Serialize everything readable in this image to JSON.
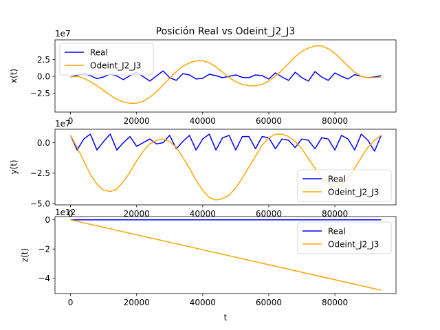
{
  "title": "Posición Real vs Odeint_J2_J3",
  "colors": {
    "real": "#0000ff",
    "odeint": "#ffa500",
    "axes": "#000000",
    "background": "#ffffff"
  },
  "chart_data": [
    {
      "type": "line",
      "ylabel": "x(t)",
      "xlabel": "",
      "offset_text": "1e7",
      "xlim": [
        -4700,
        98500
      ],
      "ylim": [
        -53000000,
        54000000
      ],
      "xticks": [
        0,
        20000,
        40000,
        60000,
        80000
      ],
      "xtick_labels": [
        "0",
        "20000",
        "40000",
        "60000",
        "80000"
      ],
      "yticks": [
        -25000000,
        0,
        25000000
      ],
      "ytick_labels": [
        "−2.5",
        "0.0",
        "2.5"
      ],
      "legend": {
        "position": "upper left",
        "entries": [
          "Real",
          "Odeint_J2_J3"
        ]
      },
      "grid": false,
      "series": [
        {
          "name": "Real",
          "color": "#0000ff",
          "x": [
            0,
            2000,
            4000,
            6000,
            8000,
            10000,
            12000,
            14000,
            16000,
            18000,
            20000,
            22000,
            24000,
            26000,
            28000,
            30000,
            32000,
            34000,
            36000,
            38000,
            40000,
            42000,
            44000,
            46000,
            48000,
            50000,
            52000,
            54000,
            56000,
            58000,
            60000,
            62000,
            64000,
            66000,
            68000,
            70000,
            72000,
            74000,
            76000,
            78000,
            80000,
            82000,
            84000,
            86000,
            88000,
            90000,
            92000,
            94000
          ],
          "y": [
            -1000000,
            1500000,
            4000000,
            1000000,
            -3500000,
            -1000000,
            3500000,
            500000,
            -5000000,
            1000000,
            6000000,
            -500000,
            -7000000,
            500000,
            8000000,
            -2000000,
            -6000000,
            4000000,
            2000000,
            -4000000,
            -3000000,
            3000000,
            1000000,
            -2000000,
            0,
            2000000,
            -1500000,
            -2000000,
            2000000,
            1000000,
            -4000000,
            5000000,
            -1000000,
            -6000000,
            6000000,
            -2000000,
            -7000000,
            7000000,
            -1000000,
            -6000000,
            5000000,
            0,
            -4000000,
            2500000,
            0,
            -2000000,
            -1000000,
            1000000
          ]
        },
        {
          "name": "Odeint_J2_J3",
          "color": "#ffa500",
          "x": [
            0,
            2000,
            4000,
            6000,
            8000,
            10000,
            12000,
            14000,
            16000,
            18000,
            20000,
            22000,
            24000,
            26000,
            28000,
            30000,
            32000,
            34000,
            36000,
            38000,
            40000,
            42000,
            44000,
            46000,
            48000,
            50000,
            52000,
            54000,
            56000,
            58000,
            60000,
            62000,
            64000,
            66000,
            68000,
            70000,
            72000,
            74000,
            76000,
            78000,
            80000,
            82000,
            84000,
            86000,
            88000,
            90000,
            92000,
            94000
          ],
          "y": [
            -1000000,
            0,
            -3000000,
            -8000000,
            -14000000,
            -21000000,
            -28000000,
            -34000000,
            -38000000,
            -40000000,
            -40000000,
            -37000000,
            -31000000,
            -23000000,
            -13000000,
            -3000000,
            7000000,
            15000000,
            20000000,
            23000000,
            23000000,
            20000000,
            14000000,
            6000000,
            -2000000,
            -8000000,
            -12000000,
            -14000000,
            -14000000,
            -12000000,
            -7000000,
            0,
            9000000,
            19000000,
            29000000,
            37000000,
            42000000,
            45000000,
            45000000,
            41000000,
            34000000,
            25000000,
            15000000,
            6000000,
            0,
            -2000000,
            -2000000,
            -1000000
          ]
        }
      ]
    },
    {
      "type": "line",
      "ylabel": "y(t)",
      "xlabel": "",
      "offset_text": "1e7",
      "xlim": [
        -4700,
        98500
      ],
      "ylim": [
        -51000000,
        11000000
      ],
      "xticks": [
        0,
        20000,
        40000,
        60000,
        80000
      ],
      "xtick_labels": [
        "0",
        "20000",
        "40000",
        "60000",
        "80000"
      ],
      "yticks": [
        -50000000,
        -25000000,
        0
      ],
      "ytick_labels": [
        "−5.0",
        "−2.5",
        "0.0"
      ],
      "legend": {
        "position": "lower right",
        "entries": [
          "Real",
          "Odeint_J2_J3"
        ]
      },
      "grid": false,
      "series": [
        {
          "name": "Real",
          "color": "#0000ff",
          "x": [
            0,
            2000,
            4000,
            6000,
            8000,
            10000,
            12000,
            14000,
            16000,
            18000,
            20000,
            22000,
            24000,
            26000,
            28000,
            30000,
            32000,
            34000,
            36000,
            38000,
            40000,
            42000,
            44000,
            46000,
            48000,
            50000,
            52000,
            54000,
            56000,
            58000,
            60000,
            62000,
            64000,
            66000,
            68000,
            70000,
            72000,
            74000,
            76000,
            78000,
            80000,
            82000,
            84000,
            86000,
            88000,
            90000,
            92000,
            94000
          ],
          "y": [
            6000000,
            -6000000,
            3000000,
            7000000,
            -6000000,
            1000000,
            7000000,
            -6000000,
            0,
            5000000,
            -3000000,
            0,
            3000000,
            -1000000,
            0,
            6000000,
            -5000000,
            1000000,
            6000000,
            -6000000,
            3000000,
            7000000,
            -6000000,
            4000000,
            6000000,
            -6000000,
            5000000,
            5000000,
            -5000000,
            5000000,
            4000000,
            -5000000,
            3000000,
            2000000,
            -4000000,
            3000000,
            2000000,
            -5000000,
            4000000,
            3000000,
            -6000000,
            6000000,
            3000000,
            -6000000,
            7000000,
            2000000,
            -7000000,
            6000000
          ]
        },
        {
          "name": "Odeint_J2_J3",
          "color": "#ffa500",
          "x": [
            0,
            2000,
            4000,
            6000,
            8000,
            10000,
            12000,
            14000,
            16000,
            18000,
            20000,
            22000,
            24000,
            26000,
            28000,
            30000,
            32000,
            34000,
            36000,
            38000,
            40000,
            42000,
            44000,
            46000,
            48000,
            50000,
            52000,
            54000,
            56000,
            58000,
            60000,
            62000,
            64000,
            66000,
            68000,
            70000,
            72000,
            74000,
            76000,
            78000,
            80000,
            82000,
            84000,
            86000,
            88000,
            90000,
            92000,
            94000
          ],
          "y": [
            6000000,
            -4000000,
            -15000000,
            -26000000,
            -34000000,
            -39000000,
            -40000000,
            -38000000,
            -32000000,
            -24000000,
            -15000000,
            -7000000,
            -1000000,
            2000000,
            3000000,
            1000000,
            -4000000,
            -12000000,
            -21000000,
            -31000000,
            -39000000,
            -45000000,
            -47000000,
            -46000000,
            -43000000,
            -37000000,
            -29000000,
            -20000000,
            -11000000,
            -2000000,
            4000000,
            7000000,
            7000000,
            5000000,
            1000000,
            -5000000,
            -13000000,
            -21000000,
            -29000000,
            -34000000,
            -36000000,
            -34000000,
            -29000000,
            -21000000,
            -12000000,
            -4000000,
            2000000,
            6000000
          ]
        }
      ]
    },
    {
      "type": "line",
      "ylabel": "z(t)",
      "xlabel": "t",
      "offset_text": "1e12",
      "xlim": [
        -4700,
        98500
      ],
      "ylim": [
        -5050000000000,
        220000000000
      ],
      "xticks": [
        0,
        20000,
        40000,
        60000,
        80000
      ],
      "xtick_labels": [
        "0",
        "20000",
        "40000",
        "60000",
        "80000"
      ],
      "yticks": [
        -4000000000000,
        -2000000000000,
        0
      ],
      "ytick_labels": [
        "−4",
        "−2",
        "0"
      ],
      "legend": {
        "position": "upper right",
        "entries": [
          "Real",
          "Odeint_J2_J3"
        ]
      },
      "grid": false,
      "series": [
        {
          "name": "Real",
          "color": "#0000ff",
          "x": [
            0,
            94000
          ],
          "y": [
            0,
            0
          ]
        },
        {
          "name": "Odeint_J2_J3",
          "color": "#ffa500",
          "x": [
            0,
            94000
          ],
          "y": [
            0,
            -4820000000000
          ]
        }
      ]
    }
  ]
}
